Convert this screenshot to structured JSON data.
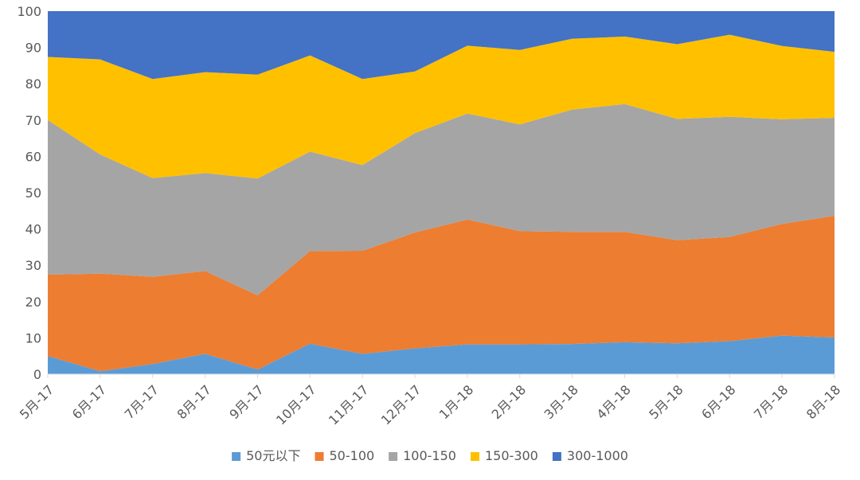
{
  "chart_data": {
    "type": "area",
    "stacked": true,
    "categories": [
      "5月-17",
      "6月-17",
      "7月-17",
      "8月-17",
      "9月-17",
      "10月-17",
      "11月-17",
      "12月-17",
      "1月-18",
      "2月-18",
      "3月-18",
      "4月-18",
      "5月-18",
      "6月-18",
      "7月-18",
      "8月-18"
    ],
    "series": [
      {
        "name": "50元以下",
        "color": "#5B9BD5",
        "values": [
          5,
          0.8,
          2.8,
          5.6,
          1.3,
          8.4,
          5.6,
          7.1,
          8.2,
          8.2,
          8.3,
          8.8,
          8.5,
          9.1,
          10.6,
          10.1
        ]
      },
      {
        "name": "50-100",
        "color": "#ED7D31",
        "values": [
          22.4,
          26.9,
          24.0,
          22.8,
          20.4,
          25.5,
          28.4,
          31.9,
          34.4,
          31.2,
          30.9,
          30.4,
          28.4,
          28.7,
          30.8,
          33.5
        ]
      },
      {
        "name": "100-150",
        "color": "#A5A5A5",
        "values": [
          42.6,
          32.8,
          27.2,
          27.0,
          32.2,
          27.4,
          23.6,
          27.4,
          29.2,
          29.4,
          33.7,
          35.2,
          33.4,
          33.1,
          28.8,
          27.0
        ]
      },
      {
        "name": "150-300",
        "color": "#FFC000",
        "values": [
          17.4,
          26.2,
          27.3,
          27.8,
          28.6,
          26.5,
          23.7,
          17.0,
          18.7,
          20.5,
          19.5,
          18.6,
          20.6,
          22.6,
          20.2,
          18.2
        ]
      },
      {
        "name": "300-1000",
        "color": "#4472C4",
        "values": [
          12.6,
          13.3,
          18.7,
          16.8,
          17.5,
          12.2,
          18.7,
          16.6,
          9.5,
          10.7,
          7.6,
          7.0,
          9.1,
          6.5,
          9.6,
          11.2
        ]
      }
    ],
    "ylim": [
      0,
      100
    ],
    "yticks": [
      0,
      10,
      20,
      30,
      40,
      50,
      60,
      70,
      80,
      90,
      100
    ],
    "grid": false,
    "legend_position": "bottom"
  }
}
